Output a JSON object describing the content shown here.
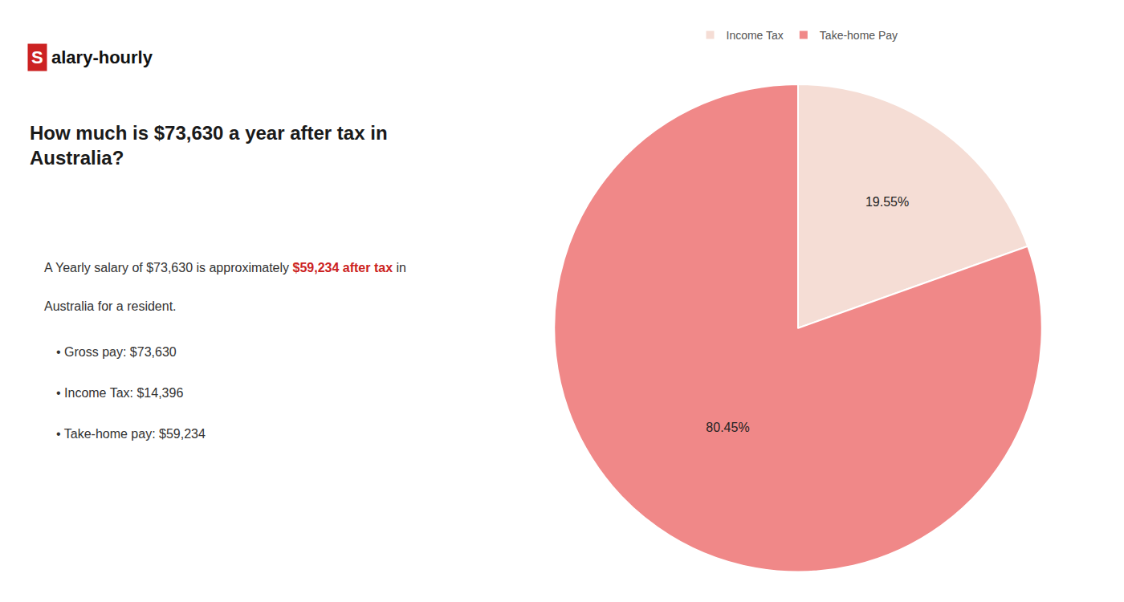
{
  "chart_data": {
    "type": "pie",
    "title": "How much is $73,630 a year after tax in\nAustralia?",
    "annotations": [
      [
        {
          "text": "S",
          "color": "#cc2222"
        },
        "alary-hourly"
      ],
      [
        "A Yearly salary of $73,630 is approximately ",
        {
          "text": "$59,234 after tax",
          "color": "#cc2222"
        },
        " in"
      ],
      [
        "Australia for a resident."
      ],
      [
        "• Gross pay: $73,630"
      ],
      [
        "• Income Tax: $14,396"
      ],
      [
        "• Take-home pay: $59,234"
      ]
    ],
    "categories": [
      "Income Tax",
      "Take-home Pay"
    ],
    "values": [
      19.55,
      80.45
    ],
    "value_labels": [
      "19.55%",
      "80.45%"
    ],
    "colors": [
      "#f5ddd5",
      "#f08888"
    ],
    "data_labels": true,
    "legend": "top"
  }
}
